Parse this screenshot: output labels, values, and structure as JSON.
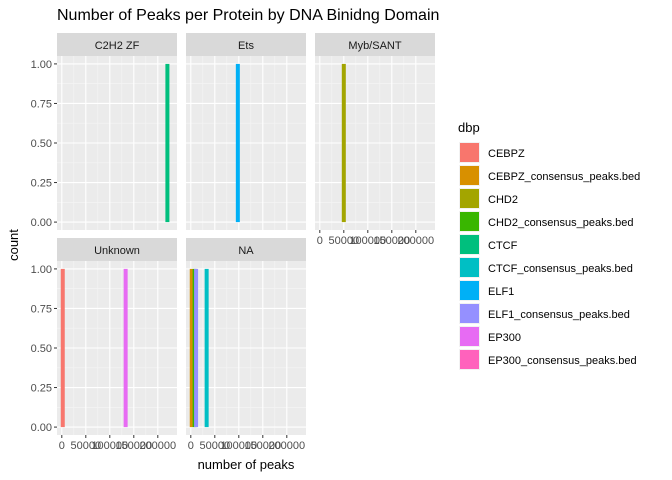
{
  "chart_data": {
    "type": "bar",
    "title": "Number of Peaks per Protein by DNA Binidng Domain",
    "xlabel": "number of peaks",
    "ylabel": "count",
    "xlim": [
      -10000,
      240000
    ],
    "ylim": [
      -0.05,
      1.05
    ],
    "x_ticks": [
      0,
      50000,
      100000,
      150000,
      200000
    ],
    "x_tick_labels": [
      "0",
      "50000",
      "100000",
      "150000",
      "200000"
    ],
    "y_ticks": [
      0,
      0.25,
      0.5,
      0.75,
      1.0
    ],
    "y_tick_labels": [
      "0.00",
      "0.25",
      "0.50",
      "0.75",
      "1.00"
    ],
    "grid": true,
    "legend": {
      "title": "dbp",
      "placement": "right",
      "entries": [
        {
          "name": "CEBPZ",
          "color": "#F8766D"
        },
        {
          "name": "CEBPZ_consensus_peaks.bed",
          "color": "#D89000"
        },
        {
          "name": "CHD2",
          "color": "#A3A500"
        },
        {
          "name": "CHD2_consensus_peaks.bed",
          "color": "#39B600"
        },
        {
          "name": "CTCF",
          "color": "#00BF7D"
        },
        {
          "name": "CTCF_consensus_peaks.bed",
          "color": "#00BFC4"
        },
        {
          "name": "ELF1",
          "color": "#00B0F6"
        },
        {
          "name": "ELF1_consensus_peaks.bed",
          "color": "#9590FF"
        },
        {
          "name": "EP300",
          "color": "#E76BF3"
        },
        {
          "name": "EP300_consensus_peaks.bed",
          "color": "#FF62BC"
        }
      ]
    },
    "panels": [
      {
        "label": "C2H2 ZF",
        "bars": [
          {
            "dbp": "CTCF",
            "x": 220000,
            "count": 1
          }
        ]
      },
      {
        "label": "Ets",
        "bars": [
          {
            "dbp": "ELF1",
            "x": 98000,
            "count": 1
          }
        ]
      },
      {
        "label": "Myb/SANT",
        "bars": [
          {
            "dbp": "CHD2",
            "x": 50000,
            "count": 1
          }
        ]
      },
      {
        "label": "Unknown",
        "bars": [
          {
            "dbp": "CEBPZ",
            "x": 2000,
            "count": 1
          },
          {
            "dbp": "EP300",
            "x": 133000,
            "count": 1
          }
        ]
      },
      {
        "label": "NA",
        "bars": [
          {
            "dbp": "CEBPZ_consensus_peaks.bed",
            "x": 2000,
            "count": 1
          },
          {
            "dbp": "CHD2_consensus_peaks.bed",
            "x": 8000,
            "count": 1
          },
          {
            "dbp": "ELF1_consensus_peaks.bed",
            "x": 11000,
            "count": 1
          },
          {
            "dbp": "CTCF_consensus_peaks.bed",
            "x": 33000,
            "count": 1
          }
        ]
      }
    ]
  }
}
